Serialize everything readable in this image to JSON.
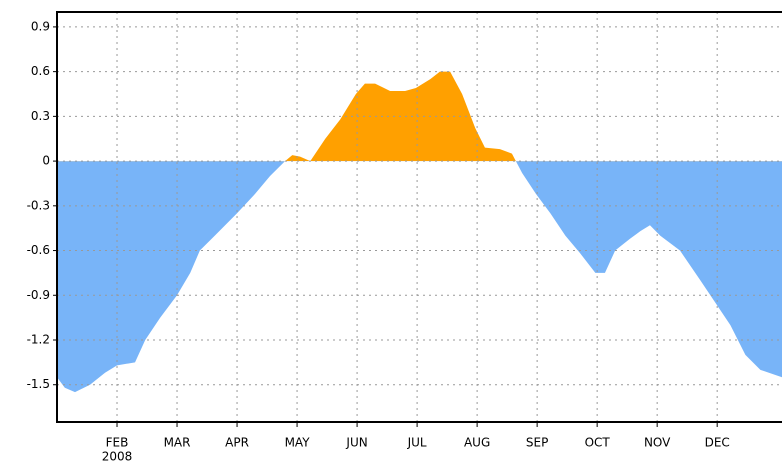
{
  "chart_data": {
    "type": "area",
    "x": [
      0,
      0.13,
      0.3,
      0.55,
      0.8,
      1,
      1.3,
      1.47,
      1.72,
      2,
      2.22,
      2.38,
      2.63,
      3,
      3.3,
      3.55,
      3.8,
      3.92,
      4.05,
      4.22,
      4.47,
      4.72,
      4.98,
      5.13,
      5.3,
      5.55,
      5.8,
      5.98,
      6.22,
      6.38,
      6.55,
      6.75,
      6.97,
      7.13,
      7.38,
      7.58,
      7.75,
      7.98,
      8.22,
      8.47,
      8.72,
      8.97,
      9.13,
      9.3,
      9.55,
      9.72,
      9.88,
      10.05,
      10.38,
      10.72,
      10.97,
      11.22,
      11.47,
      11.72,
      12.08
    ],
    "values": [
      -1.45,
      -1.52,
      -1.55,
      -1.5,
      -1.42,
      -1.37,
      -1.35,
      -1.2,
      -1.05,
      -0.9,
      -0.75,
      -0.6,
      -0.5,
      -0.35,
      -0.22,
      -0.1,
      0,
      0.04,
      0.03,
      0,
      0.15,
      0.28,
      0.45,
      0.52,
      0.52,
      0.47,
      0.47,
      0.49,
      0.55,
      0.6,
      0.6,
      0.45,
      0.22,
      0.09,
      0.08,
      0.05,
      -0.08,
      -0.22,
      -0.35,
      -0.5,
      -0.62,
      -0.75,
      -0.75,
      -0.6,
      -0.52,
      -0.47,
      -0.43,
      -0.5,
      -0.6,
      -0.8,
      -0.95,
      -1.1,
      -1.3,
      -1.4,
      -1.45
    ],
    "positive_color": "#ffa000",
    "negative_color": "#78b4f8",
    "xlim": [
      0,
      12.08
    ],
    "xticks": [
      {
        "value": 1,
        "label": "FEB"
      },
      {
        "value": 2,
        "label": "MAR"
      },
      {
        "value": 3,
        "label": "APR"
      },
      {
        "value": 4,
        "label": "MAY"
      },
      {
        "value": 5,
        "label": "JUN"
      },
      {
        "value": 6,
        "label": "JUL"
      },
      {
        "value": 7,
        "label": "AUG"
      },
      {
        "value": 8,
        "label": "SEP"
      },
      {
        "value": 9,
        "label": "OCT"
      },
      {
        "value": 10,
        "label": "NOV"
      },
      {
        "value": 11,
        "label": "DEC"
      }
    ],
    "year_label": "2008",
    "ylim": [
      -1.75,
      1.0
    ],
    "yticks": [
      0.9,
      0.6,
      0.3,
      0,
      -0.3,
      -0.6,
      -0.9,
      -1.2,
      -1.5
    ],
    "grid": true
  }
}
